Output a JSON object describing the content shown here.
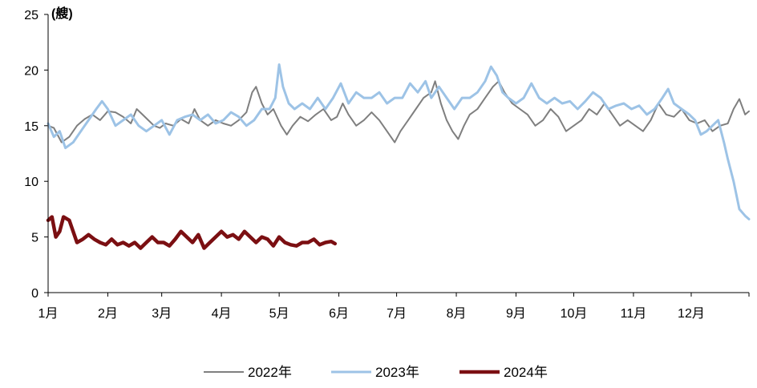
{
  "chart_data": {
    "type": "line",
    "unit_label": "(艘)",
    "ylim": [
      0,
      25
    ],
    "yticks": [
      0,
      5,
      10,
      15,
      20,
      25
    ],
    "xlim": [
      1,
      365
    ],
    "categories": [
      "1月",
      "2月",
      "3月",
      "4月",
      "5月",
      "6月",
      "7月",
      "8月",
      "9月",
      "10月",
      "11月",
      "12月"
    ],
    "category_days": [
      1,
      32,
      60,
      91,
      121,
      152,
      182,
      213,
      244,
      274,
      305,
      335
    ],
    "grid": false,
    "legend_position": "bottom",
    "series": [
      {
        "name": "2022年",
        "color": "#7f7f7f",
        "points": [
          [
            1,
            15.0
          ],
          [
            4,
            14.8
          ],
          [
            8,
            13.5
          ],
          [
            12,
            14.0
          ],
          [
            16,
            15.0
          ],
          [
            20,
            15.6
          ],
          [
            24,
            16.0
          ],
          [
            28,
            15.5
          ],
          [
            32,
            16.3
          ],
          [
            36,
            16.2
          ],
          [
            40,
            15.8
          ],
          [
            44,
            15.2
          ],
          [
            47,
            16.5
          ],
          [
            50,
            16.0
          ],
          [
            53,
            15.5
          ],
          [
            56,
            15.0
          ],
          [
            59,
            14.8
          ],
          [
            62,
            15.2
          ],
          [
            66,
            15.0
          ],
          [
            70,
            15.6
          ],
          [
            74,
            15.2
          ],
          [
            77,
            16.5
          ],
          [
            80,
            15.5
          ],
          [
            84,
            15.0
          ],
          [
            88,
            15.5
          ],
          [
            92,
            15.2
          ],
          [
            96,
            15.0
          ],
          [
            100,
            15.5
          ],
          [
            104,
            16.2
          ],
          [
            107,
            18.0
          ],
          [
            109,
            18.5
          ],
          [
            112,
            17.0
          ],
          [
            115,
            16.0
          ],
          [
            118,
            16.5
          ],
          [
            122,
            15.0
          ],
          [
            125,
            14.2
          ],
          [
            128,
            15.0
          ],
          [
            132,
            15.8
          ],
          [
            136,
            15.4
          ],
          [
            140,
            16.0
          ],
          [
            144,
            16.5
          ],
          [
            148,
            15.5
          ],
          [
            151,
            15.8
          ],
          [
            154,
            17.0
          ],
          [
            157,
            16.0
          ],
          [
            161,
            15.0
          ],
          [
            165,
            15.5
          ],
          [
            169,
            16.2
          ],
          [
            173,
            15.5
          ],
          [
            177,
            14.5
          ],
          [
            181,
            13.5
          ],
          [
            184,
            14.5
          ],
          [
            188,
            15.5
          ],
          [
            192,
            16.5
          ],
          [
            196,
            17.5
          ],
          [
            200,
            18.0
          ],
          [
            202,
            19.0
          ],
          [
            205,
            17.0
          ],
          [
            208,
            15.5
          ],
          [
            211,
            14.5
          ],
          [
            214,
            13.8
          ],
          [
            217,
            15.0
          ],
          [
            220,
            16.0
          ],
          [
            224,
            16.5
          ],
          [
            228,
            17.5
          ],
          [
            232,
            18.5
          ],
          [
            235,
            19.0
          ],
          [
            238,
            18.0
          ],
          [
            242,
            17.0
          ],
          [
            246,
            16.5
          ],
          [
            250,
            16.0
          ],
          [
            254,
            15.0
          ],
          [
            258,
            15.5
          ],
          [
            262,
            16.5
          ],
          [
            266,
            15.8
          ],
          [
            270,
            14.5
          ],
          [
            274,
            15.0
          ],
          [
            278,
            15.5
          ],
          [
            282,
            16.5
          ],
          [
            286,
            16.0
          ],
          [
            290,
            17.0
          ],
          [
            294,
            16.0
          ],
          [
            298,
            15.0
          ],
          [
            302,
            15.5
          ],
          [
            306,
            15.0
          ],
          [
            310,
            14.5
          ],
          [
            314,
            15.5
          ],
          [
            318,
            17.0
          ],
          [
            322,
            16.0
          ],
          [
            326,
            15.8
          ],
          [
            330,
            16.5
          ],
          [
            334,
            15.5
          ],
          [
            338,
            15.2
          ],
          [
            342,
            15.5
          ],
          [
            346,
            14.5
          ],
          [
            350,
            15.0
          ],
          [
            354,
            15.2
          ],
          [
            357,
            16.5
          ],
          [
            360,
            17.4
          ],
          [
            363,
            16.0
          ],
          [
            365,
            16.3
          ]
        ]
      },
      {
        "name": "2023年",
        "color": "#9dc3e6",
        "points": [
          [
            1,
            15.2
          ],
          [
            4,
            14.0
          ],
          [
            7,
            14.5
          ],
          [
            10,
            13.0
          ],
          [
            14,
            13.5
          ],
          [
            18,
            14.5
          ],
          [
            22,
            15.5
          ],
          [
            26,
            16.5
          ],
          [
            29,
            17.2
          ],
          [
            32,
            16.5
          ],
          [
            36,
            15.0
          ],
          [
            40,
            15.5
          ],
          [
            44,
            16.0
          ],
          [
            48,
            15.0
          ],
          [
            52,
            14.5
          ],
          [
            56,
            15.0
          ],
          [
            60,
            15.5
          ],
          [
            64,
            14.2
          ],
          [
            68,
            15.5
          ],
          [
            72,
            15.8
          ],
          [
            76,
            16.0
          ],
          [
            80,
            15.5
          ],
          [
            84,
            16.0
          ],
          [
            88,
            15.2
          ],
          [
            92,
            15.5
          ],
          [
            96,
            16.2
          ],
          [
            100,
            15.8
          ],
          [
            104,
            15.0
          ],
          [
            108,
            15.5
          ],
          [
            112,
            16.5
          ],
          [
            116,
            16.5
          ],
          [
            119,
            17.5
          ],
          [
            121,
            20.5
          ],
          [
            123,
            18.5
          ],
          [
            126,
            17.0
          ],
          [
            129,
            16.5
          ],
          [
            133,
            17.0
          ],
          [
            137,
            16.5
          ],
          [
            141,
            17.5
          ],
          [
            145,
            16.5
          ],
          [
            149,
            17.5
          ],
          [
            153,
            18.8
          ],
          [
            157,
            17.0
          ],
          [
            161,
            18.0
          ],
          [
            165,
            17.5
          ],
          [
            169,
            17.5
          ],
          [
            173,
            18.0
          ],
          [
            177,
            17.0
          ],
          [
            181,
            17.5
          ],
          [
            185,
            17.5
          ],
          [
            189,
            18.8
          ],
          [
            193,
            18.0
          ],
          [
            197,
            19.0
          ],
          [
            200,
            17.5
          ],
          [
            204,
            18.5
          ],
          [
            208,
            17.5
          ],
          [
            212,
            16.5
          ],
          [
            216,
            17.5
          ],
          [
            220,
            17.5
          ],
          [
            224,
            18.0
          ],
          [
            228,
            19.0
          ],
          [
            231,
            20.3
          ],
          [
            234,
            19.5
          ],
          [
            237,
            18.0
          ],
          [
            240,
            17.5
          ],
          [
            244,
            17.0
          ],
          [
            248,
            17.5
          ],
          [
            252,
            18.8
          ],
          [
            256,
            17.5
          ],
          [
            260,
            17.0
          ],
          [
            264,
            17.5
          ],
          [
            268,
            17.0
          ],
          [
            272,
            17.2
          ],
          [
            276,
            16.5
          ],
          [
            280,
            17.2
          ],
          [
            284,
            18.0
          ],
          [
            288,
            17.5
          ],
          [
            292,
            16.5
          ],
          [
            296,
            16.8
          ],
          [
            300,
            17.0
          ],
          [
            304,
            16.5
          ],
          [
            308,
            16.8
          ],
          [
            312,
            16.0
          ],
          [
            316,
            16.5
          ],
          [
            320,
            17.5
          ],
          [
            323,
            18.3
          ],
          [
            326,
            17.0
          ],
          [
            330,
            16.5
          ],
          [
            334,
            16.0
          ],
          [
            337,
            15.5
          ],
          [
            340,
            14.2
          ],
          [
            343,
            14.5
          ],
          [
            346,
            15.0
          ],
          [
            349,
            15.5
          ],
          [
            352,
            13.5
          ],
          [
            354,
            12.0
          ],
          [
            357,
            10.0
          ],
          [
            360,
            7.5
          ],
          [
            363,
            6.9
          ],
          [
            365,
            6.6
          ]
        ]
      },
      {
        "name": "2024年",
        "color": "#7b0f12",
        "points": [
          [
            1,
            6.5
          ],
          [
            3,
            6.8
          ],
          [
            5,
            5.0
          ],
          [
            7,
            5.5
          ],
          [
            9,
            6.8
          ],
          [
            12,
            6.5
          ],
          [
            14,
            5.5
          ],
          [
            16,
            4.5
          ],
          [
            19,
            4.8
          ],
          [
            22,
            5.2
          ],
          [
            25,
            4.8
          ],
          [
            28,
            4.5
          ],
          [
            31,
            4.3
          ],
          [
            34,
            4.8
          ],
          [
            37,
            4.3
          ],
          [
            40,
            4.5
          ],
          [
            43,
            4.2
          ],
          [
            46,
            4.5
          ],
          [
            49,
            4.0
          ],
          [
            52,
            4.5
          ],
          [
            55,
            5.0
          ],
          [
            58,
            4.5
          ],
          [
            61,
            4.5
          ],
          [
            64,
            4.2
          ],
          [
            67,
            4.8
          ],
          [
            70,
            5.5
          ],
          [
            73,
            5.0
          ],
          [
            76,
            4.5
          ],
          [
            79,
            5.2
          ],
          [
            82,
            4.0
          ],
          [
            85,
            4.5
          ],
          [
            88,
            5.0
          ],
          [
            91,
            5.5
          ],
          [
            94,
            5.0
          ],
          [
            97,
            5.2
          ],
          [
            100,
            4.8
          ],
          [
            103,
            5.5
          ],
          [
            106,
            5.0
          ],
          [
            109,
            4.5
          ],
          [
            112,
            5.0
          ],
          [
            115,
            4.8
          ],
          [
            118,
            4.2
          ],
          [
            121,
            5.0
          ],
          [
            124,
            4.5
          ],
          [
            127,
            4.3
          ],
          [
            130,
            4.2
          ],
          [
            133,
            4.5
          ],
          [
            136,
            4.5
          ],
          [
            139,
            4.8
          ],
          [
            142,
            4.3
          ],
          [
            145,
            4.5
          ],
          [
            148,
            4.6
          ],
          [
            150,
            4.4
          ]
        ]
      }
    ]
  }
}
